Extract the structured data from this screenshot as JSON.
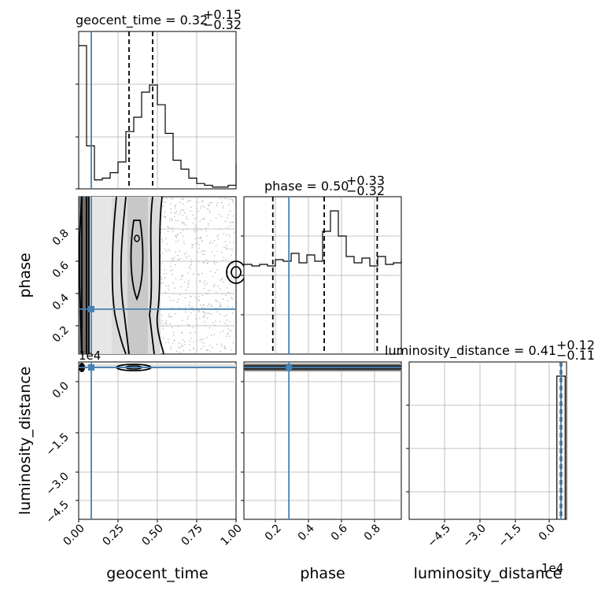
{
  "chart_data": {
    "type": "corner",
    "parameters": [
      "geocent_time",
      "phase",
      "luminosity_distance"
    ],
    "titles": {
      "geocent_time": {
        "prefix": "geocent_time = 0.32",
        "plus": "+0.15",
        "minus": "−0.32"
      },
      "phase": {
        "prefix": "phase = 0.50",
        "plus": "+0.33",
        "minus": "−0.32"
      },
      "luminosity_distance": {
        "prefix": "luminosity_distance = 0.41",
        "plus": "+0.12",
        "minus": "−0.11"
      }
    },
    "truths": {
      "geocent_time": 0.08,
      "phase": 0.28,
      "luminosity_distance": 0.0
    },
    "truth_color": "#4682b4",
    "quantile_lines": {
      "geocent_time": [
        0.32,
        0.47
      ],
      "phase": [
        0.18,
        0.5,
        0.83
      ],
      "luminosity_distance": [
        -0.02,
        0.02
      ]
    },
    "ranges": {
      "geocent_time": [
        0.0,
        1.0
      ],
      "phase": [
        0.0,
        0.98
      ],
      "luminosity_distance": [
        -5.5,
        0.2
      ]
    },
    "ticks": {
      "geocent_time": [
        "0.00",
        "0.25",
        "0.50",
        "0.75",
        "1.00"
      ],
      "phase": [
        "0.2",
        "0.4",
        "0.6",
        "0.8"
      ],
      "luminosity_distance": [
        "−4.5",
        "−3.0",
        "−1.5",
        "0.0"
      ]
    },
    "offset_label": "1e4",
    "histograms": {
      "geocent_time": {
        "bin_width": 0.05,
        "counts": [
          4.0,
          1.2,
          0.25,
          0.3,
          0.45,
          0.75,
          1.6,
          2.0,
          2.7,
          2.9,
          2.35,
          1.55,
          0.8,
          0.55,
          0.3,
          0.15,
          0.1,
          0.05,
          0.05,
          0.1,
          0.7
        ]
      },
      "phase": {
        "bin_width": 0.049,
        "counts": [
          0.57,
          0.56,
          0.57,
          0.56,
          0.6,
          0.59,
          0.64,
          0.58,
          0.63,
          0.59,
          0.78,
          0.91,
          0.75,
          0.62,
          0.58,
          0.61,
          0.56,
          0.62,
          0.57,
          0.58,
          0.6
        ]
      },
      "luminosity_distance": {
        "bins": [
          -0.15,
          0.15
        ],
        "counts": [
          1.0
        ]
      }
    },
    "grid": true
  }
}
